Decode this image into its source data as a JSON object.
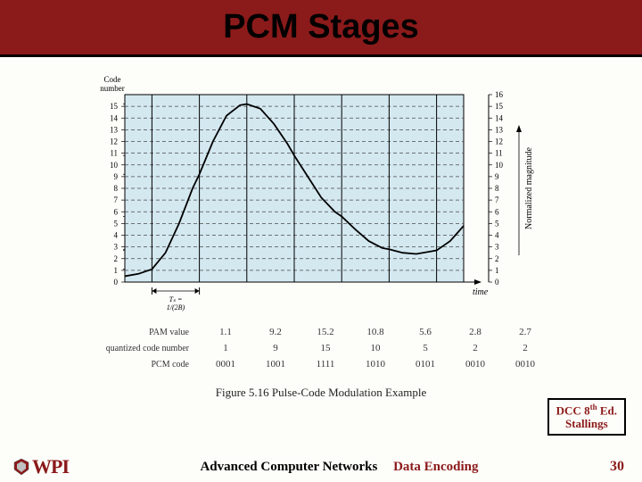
{
  "title": "PCM Stages",
  "chart": {
    "type": "line",
    "left_axis_label": "Code number",
    "right_axis_label": "Normalized magnitude",
    "x_axis_label": "time",
    "ts_label": "T_s = 1/(2B)",
    "left_ticks": [
      0,
      1,
      2,
      3,
      4,
      5,
      6,
      7,
      8,
      9,
      10,
      11,
      12,
      13,
      14,
      15
    ],
    "right_ticks": [
      0,
      1,
      2,
      3,
      4,
      5,
      6,
      7,
      8,
      9,
      10,
      11,
      12,
      13,
      14,
      15,
      16
    ],
    "plot_area_fill": "#d4e8f0",
    "grid_color": "#4a4a4a",
    "curve_color": "#000000",
    "sample_x": [
      0.08,
      0.22,
      0.36,
      0.5,
      0.64,
      0.78,
      0.92
    ],
    "pam_values": [
      1.1,
      9.2,
      15.2,
      10.8,
      5.6,
      2.8,
      2.7
    ],
    "quantized": [
      1,
      9,
      15,
      10,
      5,
      2,
      2
    ],
    "pcm_codes": [
      "0001",
      "1001",
      "1111",
      "1010",
      "0101",
      "0010",
      "0010"
    ],
    "curve_points": [
      [
        0.0,
        0.5
      ],
      [
        0.04,
        0.7
      ],
      [
        0.08,
        1.1
      ],
      [
        0.12,
        2.5
      ],
      [
        0.16,
        5.0
      ],
      [
        0.2,
        8.0
      ],
      [
        0.22,
        9.2
      ],
      [
        0.26,
        12.0
      ],
      [
        0.3,
        14.2
      ],
      [
        0.34,
        15.1
      ],
      [
        0.36,
        15.2
      ],
      [
        0.4,
        14.8
      ],
      [
        0.44,
        13.5
      ],
      [
        0.48,
        11.8
      ],
      [
        0.5,
        10.8
      ],
      [
        0.54,
        9.0
      ],
      [
        0.58,
        7.2
      ],
      [
        0.62,
        6.0
      ],
      [
        0.64,
        5.6
      ],
      [
        0.68,
        4.5
      ],
      [
        0.72,
        3.5
      ],
      [
        0.76,
        2.9
      ],
      [
        0.78,
        2.8
      ],
      [
        0.82,
        2.5
      ],
      [
        0.86,
        2.4
      ],
      [
        0.9,
        2.6
      ],
      [
        0.92,
        2.7
      ],
      [
        0.96,
        3.5
      ],
      [
        1.0,
        4.8
      ]
    ]
  },
  "table": {
    "row_labels": [
      "PAM value",
      "quantized code number",
      "PCM code"
    ]
  },
  "caption": "Figure 5.16   Pulse-Code Modulation Example",
  "reference": {
    "line1_pre": "DCC 8",
    "line1_post": " Ed.",
    "line2": "Stallings"
  },
  "footer": {
    "logo": "WPI",
    "course": "Advanced Computer Networks",
    "topic": "Data Encoding",
    "page": "30"
  }
}
